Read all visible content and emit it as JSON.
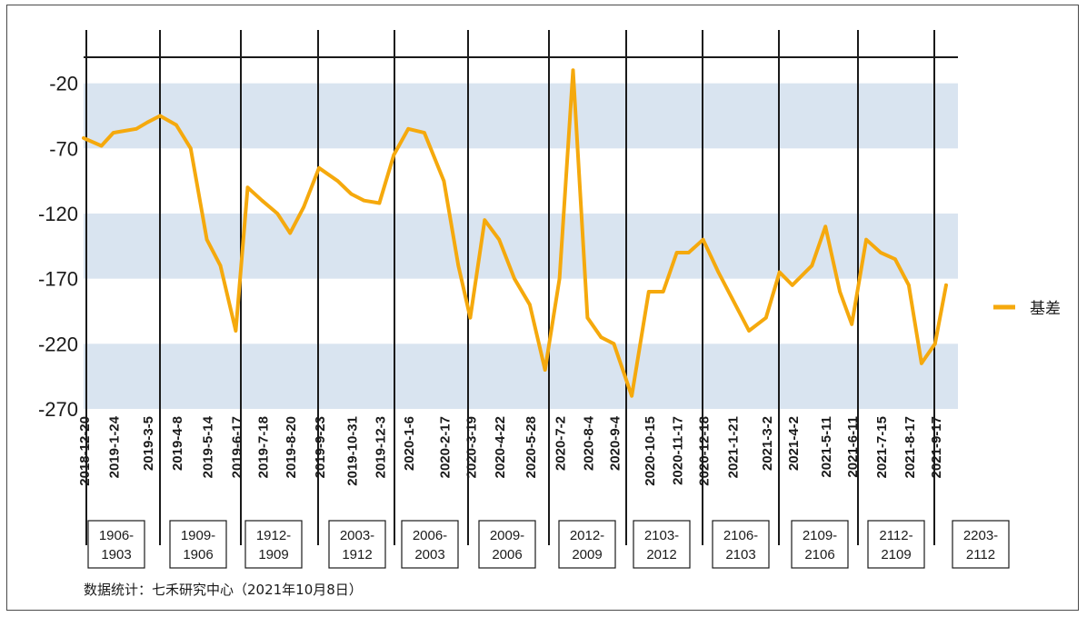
{
  "chart_data": {
    "type": "line",
    "title": "",
    "xlabel": "",
    "ylabel": "",
    "ylim": [
      -270,
      0
    ],
    "yticks": [
      -20,
      -70,
      -120,
      -170,
      -220,
      -270
    ],
    "grid": "alternating horizontal bands",
    "legend_position": "right",
    "series_color": "#F5A90D",
    "band_color": "#D9E4F0",
    "x_tick_labels": [
      "2018-12-20",
      "2019-1-24",
      "2019-3-5",
      "2019-4-8",
      "2019-5-14",
      "2019-6-17",
      "2019-7-18",
      "2019-8-20",
      "2019-9-23",
      "2019-10-31",
      "2019-12-3",
      "2020-1-6",
      "2020-2-17",
      "2020-3-19",
      "2020-4-22",
      "2020-5-28",
      "2020-7-2",
      "2020-8-4",
      "2020-9-4",
      "2020-10-15",
      "2020-11-17",
      "2020-12-18",
      "2021-1-21",
      "2021-3-2",
      "2021-4-2",
      "2021-5-11",
      "2021-6-11",
      "2021-7-15",
      "2021-8-17",
      "2021-9-17"
    ],
    "contract_switch_labels": [
      {
        "line1": "1906-",
        "line2": "1903"
      },
      {
        "line1": "1909-",
        "line2": "1906"
      },
      {
        "line1": "1912-",
        "line2": "1909"
      },
      {
        "line1": "2003-",
        "line2": "1912"
      },
      {
        "line1": "2006-",
        "line2": "2003"
      },
      {
        "line1": "2009-",
        "line2": "2006"
      },
      {
        "line1": "2012-",
        "line2": "2009"
      },
      {
        "line1": "2103-",
        "line2": "2012"
      },
      {
        "line1": "2106-",
        "line2": "2103"
      },
      {
        "line1": "2109-",
        "line2": "2106"
      },
      {
        "line1": "2112-",
        "line2": "2109"
      },
      {
        "line1": "2203-",
        "line2": "2112"
      }
    ],
    "series": [
      {
        "name": "基差",
        "x": [
          "2018-12-20",
          "2019-1-10",
          "2019-1-24",
          "2019-2-20",
          "2019-3-5",
          "2019-3-20",
          "2019-4-8",
          "2019-4-25",
          "2019-5-14",
          "2019-5-30",
          "2019-6-17",
          "2019-7-1",
          "2019-7-18",
          "2019-8-5",
          "2019-8-20",
          "2019-9-5",
          "2019-9-23",
          "2019-10-15",
          "2019-10-31",
          "2019-11-15",
          "2019-12-3",
          "2019-12-20",
          "2020-1-6",
          "2020-1-25",
          "2020-2-17",
          "2020-3-5",
          "2020-3-19",
          "2020-4-5",
          "2020-4-22",
          "2020-5-10",
          "2020-5-28",
          "2020-6-15",
          "2020-7-2",
          "2020-7-18",
          "2020-8-4",
          "2020-8-20",
          "2020-9-4",
          "2020-9-25",
          "2020-10-15",
          "2020-11-1",
          "2020-11-17",
          "2020-12-1",
          "2020-12-18",
          "2021-1-5",
          "2021-1-21",
          "2021-2-10",
          "2021-3-2",
          "2021-3-18",
          "2021-4-2",
          "2021-4-25",
          "2021-5-11",
          "2021-5-28",
          "2021-6-11",
          "2021-6-28",
          "2021-7-15",
          "2021-8-1",
          "2021-8-17",
          "2021-9-1",
          "2021-9-17",
          "2021-9-30"
        ],
        "values": [
          -62,
          -68,
          -58,
          -55,
          -50,
          -45,
          -52,
          -70,
          -140,
          -160,
          -210,
          -100,
          -110,
          -120,
          -135,
          -115,
          -85,
          -95,
          -105,
          -110,
          -112,
          -75,
          -55,
          -58,
          -95,
          -160,
          -200,
          -125,
          -140,
          -170,
          -190,
          -240,
          -170,
          -10,
          -200,
          -215,
          -220,
          -260,
          -180,
          -180,
          -150,
          -150,
          -140,
          -165,
          -185,
          -210,
          -200,
          -165,
          -175,
          -160,
          -130,
          -180,
          -205,
          -140,
          -150,
          -155,
          -175,
          -235,
          -220,
          -175
        ]
      }
    ]
  },
  "footnote": "数据统计：七禾研究中心（2021年10月8日）"
}
